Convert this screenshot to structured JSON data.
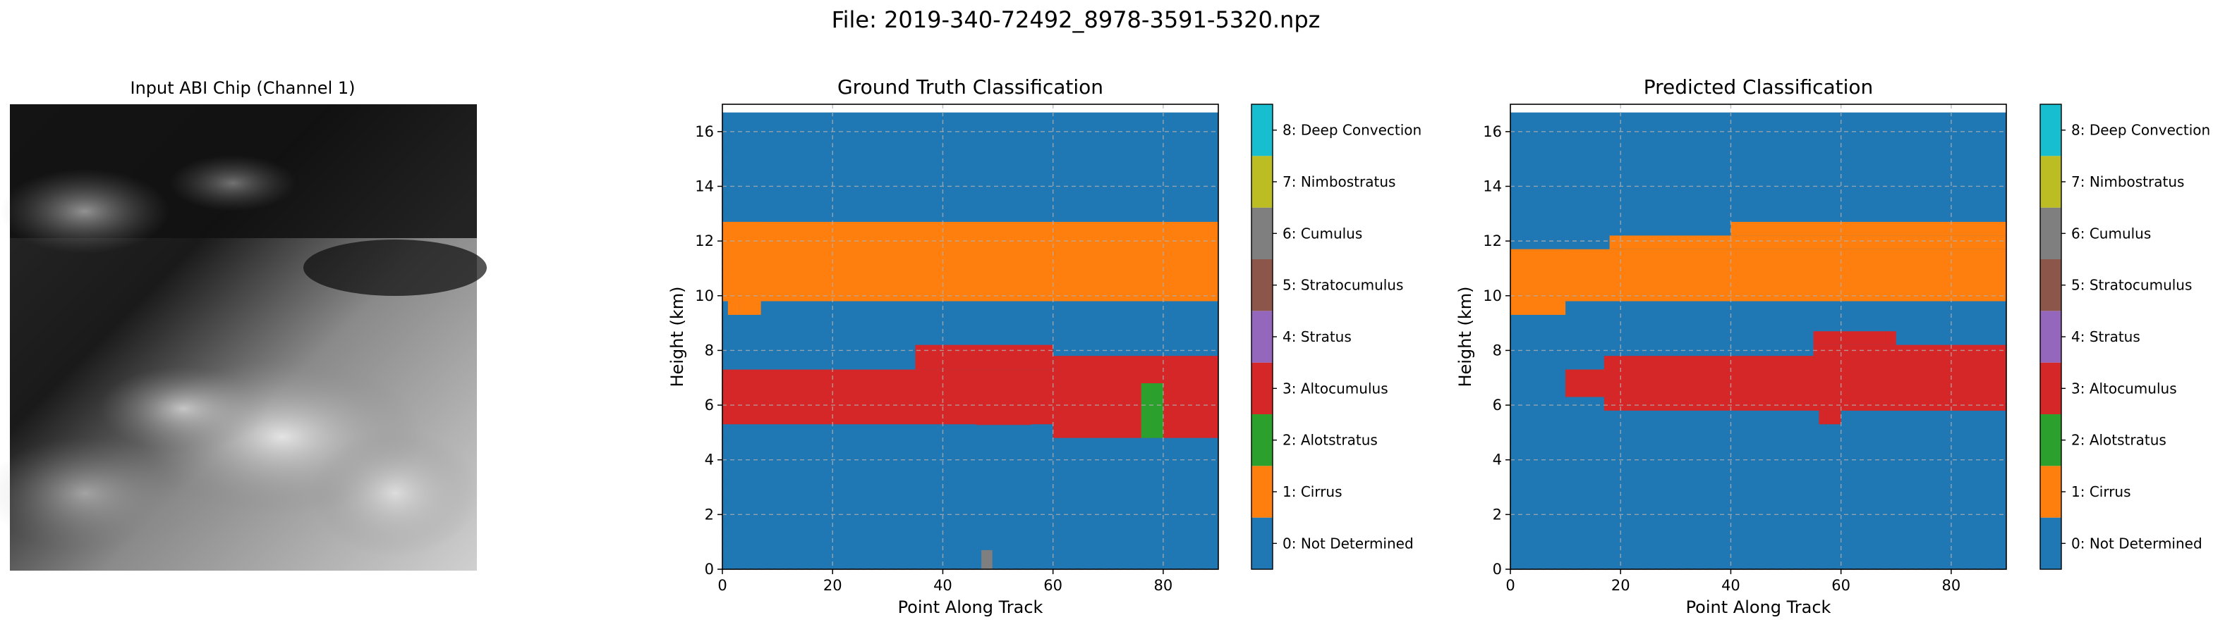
{
  "figure": {
    "suptitle": "File: 2019-340-72492_8978-3591-5320.npz"
  },
  "colors": {
    "0": "#1f77b4",
    "1": "#ff7f0e",
    "2": "#2ca02c",
    "3": "#d62728",
    "4": "#9467bd",
    "5": "#8c564b",
    "6": "#7f7f7f",
    "7": "#bcbd22",
    "8": "#17becf"
  },
  "input_panel": {
    "title": "Input ABI Chip (Channel 1)"
  },
  "colorbar": {
    "labels": [
      "0: Not Determined",
      "1: Cirrus",
      "2: Alotstratus",
      "3: Altocumulus",
      "4: Stratus",
      "5: Stratocumulus",
      "6: Cumulus",
      "7: Nimbostratus",
      "8: Deep Convection"
    ]
  },
  "chart_data": [
    {
      "type": "heatmap",
      "title": "Ground Truth Classification",
      "xlabel": "Point Along Track",
      "ylabel": "Height (km)",
      "xlim": [
        0,
        90
      ],
      "ylim": [
        0,
        17
      ],
      "xticks": [
        0,
        20,
        40,
        60,
        80
      ],
      "yticks": [
        0,
        2,
        4,
        6,
        8,
        10,
        12,
        14,
        16
      ],
      "grid": true,
      "background_class": 0,
      "regions": [
        {
          "class": 1,
          "x": [
            0,
            90
          ],
          "y": [
            9.8,
            12.7
          ]
        },
        {
          "class": 1,
          "x": [
            0,
            1
          ],
          "y": [
            10.2,
            12.2
          ]
        },
        {
          "class": 1,
          "x": [
            1,
            3
          ],
          "y": [
            9.3,
            12.7
          ]
        },
        {
          "class": 1,
          "x": [
            3,
            7
          ],
          "y": [
            9.3,
            12.7
          ]
        },
        {
          "class": 3,
          "x": [
            0,
            90
          ],
          "y": [
            5.3,
            7.3
          ]
        },
        {
          "class": 3,
          "x": [
            35,
            60
          ],
          "y": [
            7.3,
            8.2
          ]
        },
        {
          "class": 3,
          "x": [
            60,
            90
          ],
          "y": [
            4.8,
            7.8
          ]
        },
        {
          "class": 3,
          "x": [
            46,
            56
          ],
          "y": [
            5.3,
            5.3
          ]
        },
        {
          "class": 2,
          "x": [
            76,
            80
          ],
          "y": [
            4.8,
            6.8
          ]
        },
        {
          "class": 6,
          "x": [
            47,
            49
          ],
          "y": [
            0,
            0.7
          ]
        }
      ]
    },
    {
      "type": "heatmap",
      "title": "Predicted Classification",
      "xlabel": "Point Along Track",
      "ylabel": "Height (km)",
      "xlim": [
        0,
        90
      ],
      "ylim": [
        0,
        17
      ],
      "xticks": [
        0,
        20,
        40,
        60,
        80
      ],
      "yticks": [
        0,
        2,
        4,
        6,
        8,
        10,
        12,
        14,
        16
      ],
      "grid": true,
      "background_class": 0,
      "regions": [
        {
          "class": 1,
          "x": [
            0,
            90
          ],
          "y": [
            9.8,
            11.7
          ]
        },
        {
          "class": 1,
          "x": [
            0,
            10
          ],
          "y": [
            9.3,
            11.7
          ]
        },
        {
          "class": 1,
          "x": [
            18,
            90
          ],
          "y": [
            11.7,
            12.2
          ]
        },
        {
          "class": 1,
          "x": [
            40,
            90
          ],
          "y": [
            12.2,
            12.7
          ]
        },
        {
          "class": 3,
          "x": [
            10,
            90
          ],
          "y": [
            6.3,
            7.3
          ]
        },
        {
          "class": 3,
          "x": [
            10,
            17
          ],
          "y": [
            6.3,
            7.3
          ]
        },
        {
          "class": 3,
          "x": [
            17,
            90
          ],
          "y": [
            5.8,
            7.8
          ]
        },
        {
          "class": 3,
          "x": [
            55,
            90
          ],
          "y": [
            5.8,
            8.2
          ]
        },
        {
          "class": 3,
          "x": [
            55,
            70
          ],
          "y": [
            8.2,
            8.7
          ]
        },
        {
          "class": 3,
          "x": [
            56,
            60
          ],
          "y": [
            5.3,
            5.8
          ]
        }
      ]
    }
  ]
}
